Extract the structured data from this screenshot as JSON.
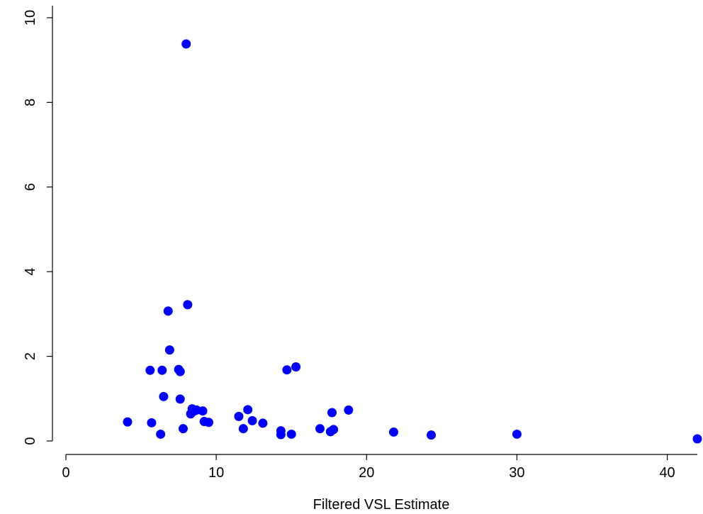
{
  "chart_data": {
    "type": "scatter",
    "title": "",
    "xlabel": "Filtered VSL Estimate",
    "ylabel": "",
    "xlim": [
      0,
      42
    ],
    "ylim": [
      0,
      10
    ],
    "xticks": [
      "0",
      "10",
      "20",
      "30",
      "40"
    ],
    "yticks": [
      "0",
      "2",
      "4",
      "6",
      "8",
      "10"
    ],
    "grid": false,
    "marker_color": "#0000ff",
    "points": [
      {
        "x": 8.0,
        "y": 9.38
      },
      {
        "x": 8.1,
        "y": 3.22
      },
      {
        "x": 6.8,
        "y": 3.07
      },
      {
        "x": 6.9,
        "y": 2.15
      },
      {
        "x": 5.6,
        "y": 1.67
      },
      {
        "x": 6.4,
        "y": 1.67
      },
      {
        "x": 7.5,
        "y": 1.69
      },
      {
        "x": 7.6,
        "y": 1.64
      },
      {
        "x": 6.5,
        "y": 1.05
      },
      {
        "x": 7.6,
        "y": 0.99
      },
      {
        "x": 4.1,
        "y": 0.45
      },
      {
        "x": 5.7,
        "y": 0.43
      },
      {
        "x": 6.3,
        "y": 0.16
      },
      {
        "x": 7.8,
        "y": 0.29
      },
      {
        "x": 8.3,
        "y": 0.64
      },
      {
        "x": 8.4,
        "y": 0.76
      },
      {
        "x": 8.5,
        "y": 0.7
      },
      {
        "x": 8.7,
        "y": 0.73
      },
      {
        "x": 9.1,
        "y": 0.71
      },
      {
        "x": 9.2,
        "y": 0.46
      },
      {
        "x": 9.5,
        "y": 0.44
      },
      {
        "x": 11.5,
        "y": 0.58
      },
      {
        "x": 11.8,
        "y": 0.29
      },
      {
        "x": 12.1,
        "y": 0.74
      },
      {
        "x": 12.4,
        "y": 0.48
      },
      {
        "x": 13.1,
        "y": 0.42
      },
      {
        "x": 14.3,
        "y": 0.15
      },
      {
        "x": 14.3,
        "y": 0.24
      },
      {
        "x": 14.7,
        "y": 1.68
      },
      {
        "x": 15.0,
        "y": 0.16
      },
      {
        "x": 15.3,
        "y": 1.75
      },
      {
        "x": 16.9,
        "y": 0.29
      },
      {
        "x": 17.6,
        "y": 0.22
      },
      {
        "x": 17.7,
        "y": 0.67
      },
      {
        "x": 17.8,
        "y": 0.27
      },
      {
        "x": 18.8,
        "y": 0.73
      },
      {
        "x": 21.8,
        "y": 0.21
      },
      {
        "x": 24.3,
        "y": 0.14
      },
      {
        "x": 30.0,
        "y": 0.16
      },
      {
        "x": 42.0,
        "y": 0.05
      }
    ]
  }
}
